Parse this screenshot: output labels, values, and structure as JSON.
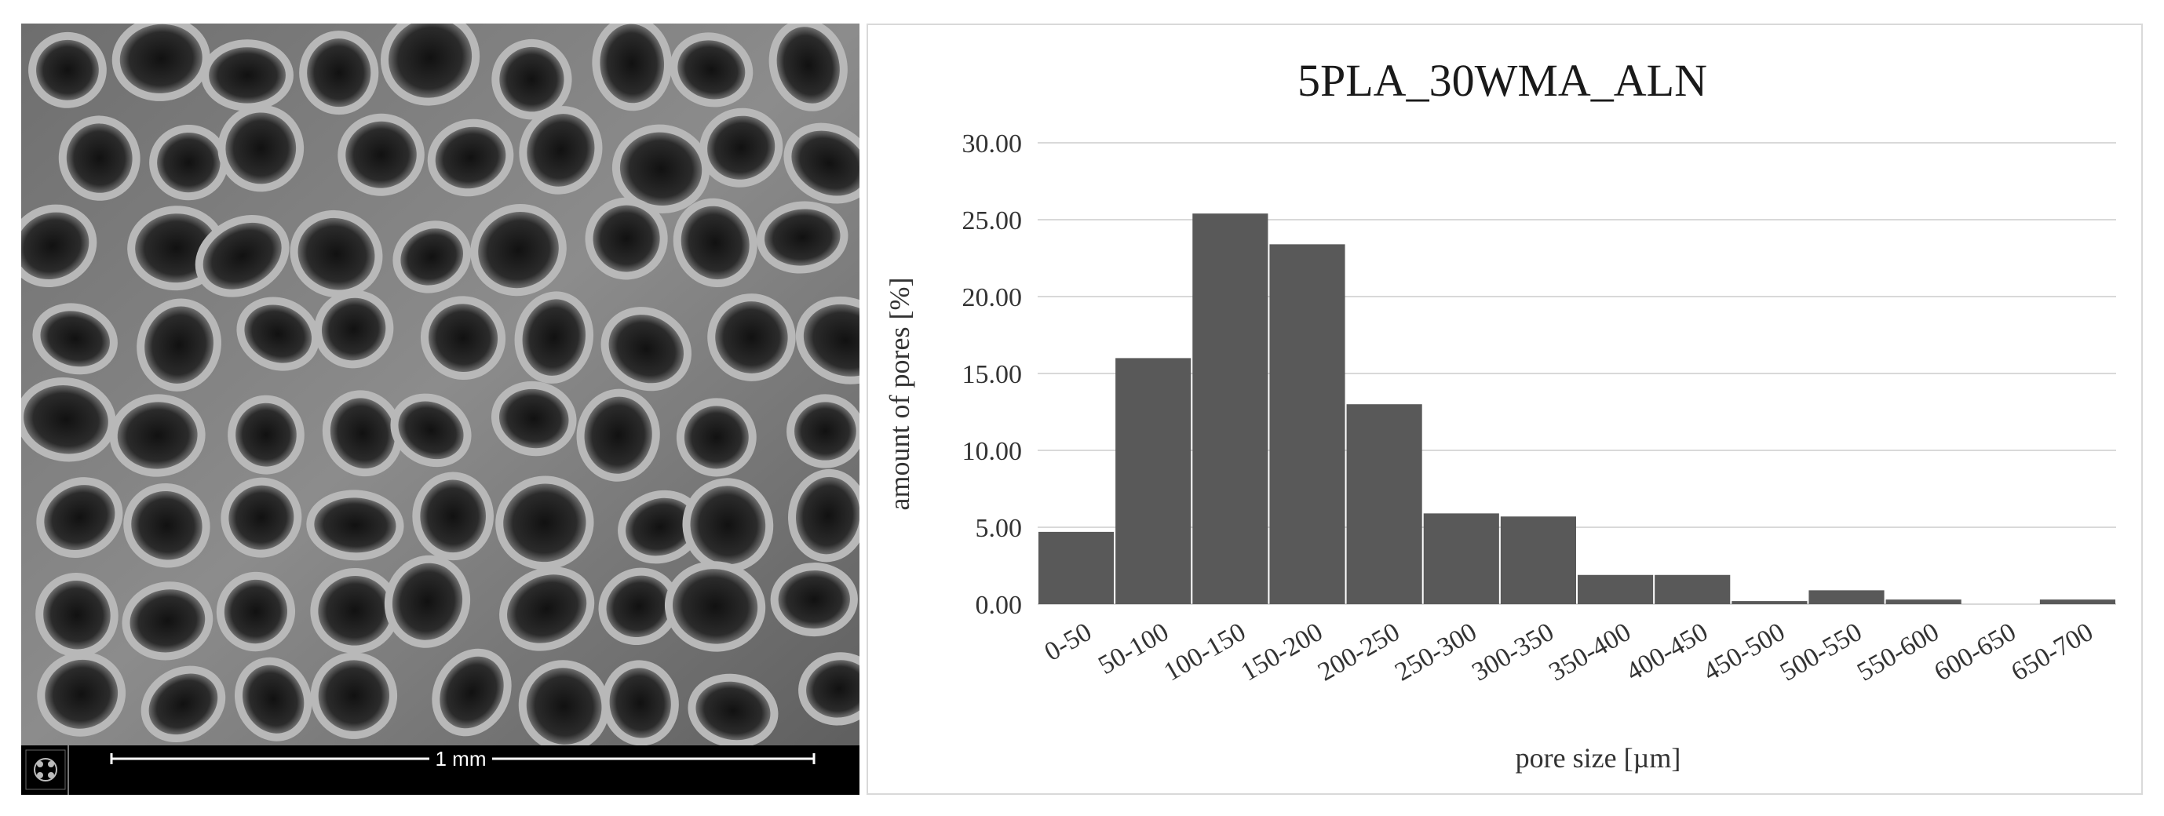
{
  "micrograph": {
    "scale_bar_label": "1 mm",
    "logo_icon": "microscope-logo-icon"
  },
  "chart_data": {
    "type": "bar",
    "title": "5PLA_30WMA_ALN",
    "xlabel": "pore size [µm]",
    "ylabel": "amount of pores [%]",
    "categories": [
      "0-50",
      "50-100",
      "100-150",
      "150-200",
      "200-250",
      "250-300",
      "300-350",
      "350-400",
      "400-450",
      "450-500",
      "500-550",
      "550-600",
      "600-650",
      "650-700"
    ],
    "values": [
      4.7,
      16.0,
      25.4,
      23.4,
      13.0,
      5.9,
      5.7,
      1.9,
      1.9,
      0.2,
      0.9,
      0.3,
      0.0,
      0.3
    ],
    "ylim": [
      0,
      30
    ],
    "yticks": [
      "0.00",
      "5.00",
      "10.00",
      "15.00",
      "20.00",
      "25.00",
      "30.00"
    ],
    "grid": true,
    "bar_color": "#595959",
    "gridline_color": "#d9d9d9"
  }
}
